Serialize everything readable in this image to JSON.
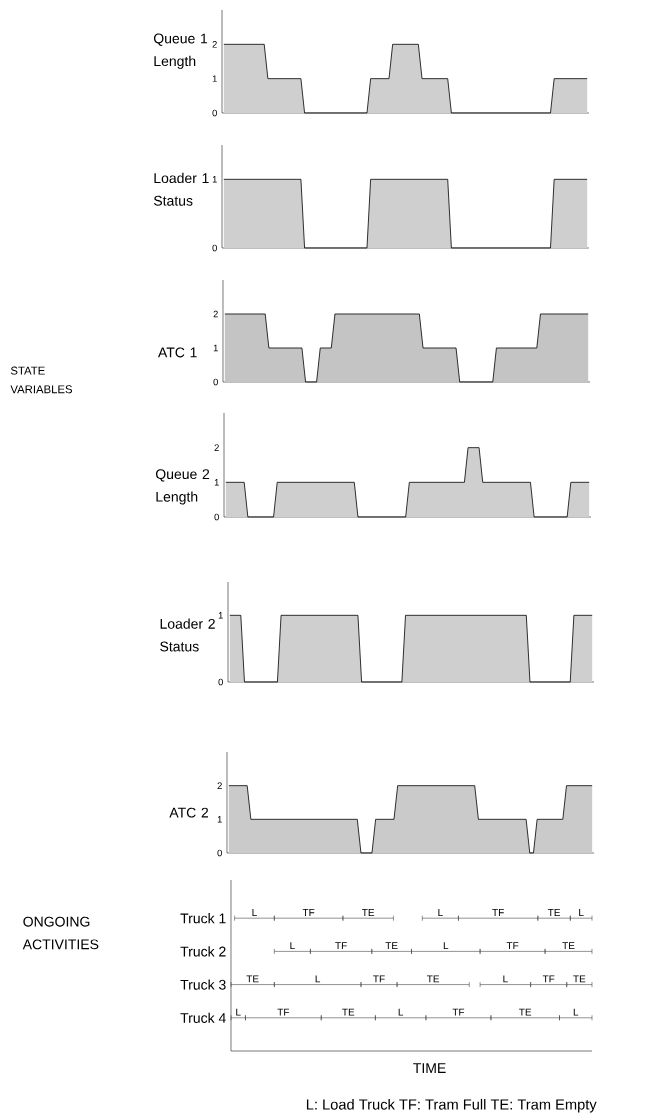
{
  "chart_data": [
    {
      "type": "area",
      "ylabel": "Queue 1 Length",
      "color": "#cfcfcf",
      "ylim": [
        0,
        3
      ],
      "yticks": [
        0,
        1,
        2
      ],
      "tick_labels": "y",
      "marker": "none",
      "categories": [
        null,
        null,
        null,
        null,
        null,
        null,
        null,
        null,
        null,
        null,
        null,
        null,
        null,
        null,
        null,
        null,
        null,
        null,
        null,
        null,
        null,
        null,
        null,
        null,
        null,
        null,
        null,
        null,
        null,
        null,
        null,
        null,
        null,
        null,
        null,
        null,
        null,
        null,
        null,
        null,
        null,
        null,
        null,
        null,
        null,
        null,
        null,
        null,
        null,
        null,
        null,
        null,
        null,
        null,
        null,
        null,
        null,
        null,
        null,
        null,
        null,
        null,
        null,
        null,
        null,
        null,
        null,
        null,
        null,
        null,
        null,
        null,
        null,
        null,
        null,
        null,
        null,
        null,
        null,
        null,
        null,
        null,
        null,
        null,
        null,
        null,
        null,
        null,
        null,
        null,
        null,
        null,
        null,
        null,
        null,
        null,
        null,
        null,
        null,
        null
      ],
      "values": [
        2,
        2,
        2,
        2,
        2,
        2,
        2,
        2,
        2,
        2,
        2,
        2,
        1,
        1,
        1,
        1,
        1,
        1,
        1,
        1,
        1,
        1,
        0,
        0,
        0,
        0,
        0,
        0,
        0,
        0,
        0,
        0,
        0,
        0,
        0,
        0,
        0,
        0,
        0,
        0,
        1,
        1,
        1,
        1,
        1,
        1,
        2,
        2,
        2,
        2,
        2,
        2,
        2,
        2,
        1,
        1,
        1,
        1,
        1,
        1,
        1,
        1,
        0,
        0,
        0,
        0,
        0,
        0,
        0,
        0,
        0,
        0,
        0,
        0,
        0,
        0,
        0,
        0,
        0,
        0,
        0,
        0,
        0,
        0,
        0,
        0,
        0,
        0,
        0,
        0,
        1,
        1,
        1,
        1,
        1,
        1,
        1,
        1,
        1,
        1
      ]
    },
    {
      "type": "area",
      "ylabel": "Loader 1 Status",
      "color": "#cfcfcf",
      "ylim": [
        0,
        1.5
      ],
      "yticks": [
        0,
        1
      ],
      "tick_labels": "y",
      "marker": "none",
      "categories": [
        null,
        null,
        null,
        null,
        null,
        null,
        null,
        null,
        null,
        null,
        null,
        null,
        null,
        null,
        null,
        null,
        null,
        null,
        null,
        null,
        null,
        null,
        null,
        null,
        null,
        null,
        null,
        null,
        null,
        null,
        null,
        null,
        null,
        null,
        null,
        null,
        null,
        null,
        null,
        null,
        null,
        null,
        null,
        null,
        null,
        null,
        null,
        null,
        null,
        null,
        null,
        null,
        null,
        null,
        null,
        null,
        null,
        null,
        null,
        null,
        null,
        null,
        null,
        null,
        null,
        null,
        null,
        null,
        null,
        null,
        null,
        null,
        null,
        null,
        null,
        null,
        null,
        null,
        null,
        null,
        null,
        null,
        null,
        null,
        null,
        null,
        null,
        null,
        null,
        null,
        null,
        null,
        null,
        null,
        null,
        null,
        null,
        null,
        null,
        null
      ],
      "values": [
        1,
        1,
        1,
        1,
        1,
        1,
        1,
        1,
        1,
        1,
        1,
        1,
        1,
        1,
        1,
        1,
        1,
        1,
        1,
        1,
        1,
        1,
        0,
        0,
        0,
        0,
        0,
        0,
        0,
        0,
        0,
        0,
        0,
        0,
        0,
        0,
        0,
        0,
        0,
        0,
        1,
        1,
        1,
        1,
        1,
        1,
        1,
        1,
        1,
        1,
        1,
        1,
        1,
        1,
        1,
        1,
        1,
        1,
        1,
        1,
        1,
        1,
        0,
        0,
        0,
        0,
        0,
        0,
        0,
        0,
        0,
        0,
        0,
        0,
        0,
        0,
        0,
        0,
        0,
        0,
        0,
        0,
        0,
        0,
        0,
        0,
        0,
        0,
        0,
        0,
        1,
        1,
        1,
        1,
        1,
        1,
        1,
        1,
        1,
        1
      ]
    },
    {
      "type": "area",
      "ylabel": "ATC 1",
      "color": "#c4c4c4",
      "ylim": [
        0,
        3
      ],
      "yticks": [
        0,
        1,
        2
      ],
      "tick_labels": "y",
      "marker": "none",
      "annotations": [
        "STATE VARIABLES"
      ],
      "categories": [
        null,
        null,
        null,
        null,
        null,
        null,
        null,
        null,
        null,
        null,
        null,
        null,
        null,
        null,
        null,
        null,
        null,
        null,
        null,
        null,
        null,
        null,
        null,
        null,
        null,
        null,
        null,
        null,
        null,
        null,
        null,
        null,
        null,
        null,
        null,
        null,
        null,
        null,
        null,
        null,
        null,
        null,
        null,
        null,
        null,
        null,
        null,
        null,
        null,
        null,
        null,
        null,
        null,
        null,
        null,
        null,
        null,
        null,
        null,
        null,
        null,
        null,
        null,
        null,
        null,
        null,
        null,
        null,
        null,
        null,
        null,
        null,
        null,
        null,
        null,
        null,
        null,
        null,
        null,
        null,
        null,
        null,
        null,
        null,
        null,
        null,
        null,
        null,
        null,
        null,
        null,
        null,
        null,
        null,
        null,
        null,
        null,
        null,
        null,
        null
      ],
      "values": [
        2,
        2,
        2,
        2,
        2,
        2,
        2,
        2,
        2,
        2,
        2,
        2,
        1,
        1,
        1,
        1,
        1,
        1,
        1,
        1,
        1,
        1,
        0,
        0,
        0,
        0,
        1,
        1,
        1,
        1,
        2,
        2,
        2,
        2,
        2,
        2,
        2,
        2,
        2,
        2,
        2,
        2,
        2,
        2,
        2,
        2,
        2,
        2,
        2,
        2,
        2,
        2,
        2,
        2,
        1,
        1,
        1,
        1,
        1,
        1,
        1,
        1,
        1,
        1,
        0,
        0,
        0,
        0,
        0,
        0,
        0,
        0,
        0,
        0,
        1,
        1,
        1,
        1,
        1,
        1,
        1,
        1,
        1,
        1,
        1,
        1,
        2,
        2,
        2,
        2,
        2,
        2,
        2,
        2,
        2,
        2,
        2,
        2,
        2,
        2
      ]
    },
    {
      "type": "area",
      "ylabel": "Queue 2 Length",
      "color": "#cfcfcf",
      "ylim": [
        0,
        3
      ],
      "yticks": [
        0,
        1,
        2
      ],
      "tick_labels": "y",
      "marker": "none",
      "categories": [
        null,
        null,
        null,
        null,
        null,
        null,
        null,
        null,
        null,
        null,
        null,
        null,
        null,
        null,
        null,
        null,
        null,
        null,
        null,
        null,
        null,
        null,
        null,
        null,
        null,
        null,
        null,
        null,
        null,
        null,
        null,
        null,
        null,
        null,
        null,
        null,
        null,
        null,
        null,
        null,
        null,
        null,
        null,
        null,
        null,
        null,
        null,
        null,
        null,
        null,
        null,
        null,
        null,
        null,
        null,
        null,
        null,
        null,
        null,
        null,
        null,
        null,
        null,
        null,
        null,
        null,
        null,
        null,
        null,
        null,
        null,
        null,
        null,
        null,
        null,
        null,
        null,
        null,
        null,
        null,
        null,
        null,
        null,
        null,
        null,
        null,
        null,
        null,
        null,
        null,
        null,
        null,
        null,
        null,
        null,
        null,
        null,
        null,
        null,
        null
      ],
      "values": [
        1,
        1,
        1,
        1,
        1,
        1,
        0,
        0,
        0,
        0,
        0,
        0,
        0,
        0,
        1,
        1,
        1,
        1,
        1,
        1,
        1,
        1,
        1,
        1,
        1,
        1,
        1,
        1,
        1,
        1,
        1,
        1,
        1,
        1,
        1,
        1,
        0,
        0,
        0,
        0,
        0,
        0,
        0,
        0,
        0,
        0,
        0,
        0,
        0,
        0,
        1,
        1,
        1,
        1,
        1,
        1,
        1,
        1,
        1,
        1,
        1,
        1,
        1,
        1,
        1,
        1,
        2,
        2,
        2,
        2,
        1,
        1,
        1,
        1,
        1,
        1,
        1,
        1,
        1,
        1,
        1,
        1,
        1,
        1,
        0,
        0,
        0,
        0,
        0,
        0,
        0,
        0,
        0,
        0,
        1,
        1,
        1,
        1,
        1,
        1
      ]
    },
    {
      "type": "area",
      "ylabel": "Loader 2 Status",
      "color": "#cfcfcf",
      "ylim": [
        0,
        1.5
      ],
      "yticks": [
        0,
        1
      ],
      "tick_labels": "y",
      "marker": "none",
      "categories": [
        null,
        null,
        null,
        null,
        null,
        null,
        null,
        null,
        null,
        null,
        null,
        null,
        null,
        null,
        null,
        null,
        null,
        null,
        null,
        null,
        null,
        null,
        null,
        null,
        null,
        null,
        null,
        null,
        null,
        null,
        null,
        null,
        null,
        null,
        null,
        null,
        null,
        null,
        null,
        null,
        null,
        null,
        null,
        null,
        null,
        null,
        null,
        null,
        null,
        null,
        null,
        null,
        null,
        null,
        null,
        null,
        null,
        null,
        null,
        null,
        null,
        null,
        null,
        null,
        null,
        null,
        null,
        null,
        null,
        null,
        null,
        null,
        null,
        null,
        null,
        null,
        null,
        null,
        null,
        null,
        null,
        null,
        null,
        null,
        null,
        null,
        null,
        null,
        null,
        null,
        null,
        null,
        null,
        null,
        null,
        null,
        null,
        null,
        null,
        null
      ],
      "values": [
        1,
        1,
        1,
        1,
        0,
        0,
        0,
        0,
        0,
        0,
        0,
        0,
        0,
        0,
        1,
        1,
        1,
        1,
        1,
        1,
        1,
        1,
        1,
        1,
        1,
        1,
        1,
        1,
        1,
        1,
        1,
        1,
        1,
        1,
        1,
        1,
        0,
        0,
        0,
        0,
        0,
        0,
        0,
        0,
        0,
        0,
        0,
        0,
        1,
        1,
        1,
        1,
        1,
        1,
        1,
        1,
        1,
        1,
        1,
        1,
        1,
        1,
        1,
        1,
        1,
        1,
        1,
        1,
        1,
        1,
        1,
        1,
        1,
        1,
        1,
        1,
        1,
        1,
        1,
        1,
        1,
        1,
        0,
        0,
        0,
        0,
        0,
        0,
        0,
        0,
        0,
        0,
        0,
        0,
        1,
        1,
        1,
        1,
        1,
        1
      ]
    },
    {
      "type": "area",
      "ylabel": "ATC 2",
      "color": "#cacaca",
      "ylim": [
        0,
        3
      ],
      "yticks": [
        0,
        1,
        2
      ],
      "tick_labels": "y",
      "marker": "none",
      "categories": [
        null,
        null,
        null,
        null,
        null,
        null,
        null,
        null,
        null,
        null,
        null,
        null,
        null,
        null,
        null,
        null,
        null,
        null,
        null,
        null,
        null,
        null,
        null,
        null,
        null,
        null,
        null,
        null,
        null,
        null,
        null,
        null,
        null,
        null,
        null,
        null,
        null,
        null,
        null,
        null,
        null,
        null,
        null,
        null,
        null,
        null,
        null,
        null,
        null,
        null,
        null,
        null,
        null,
        null,
        null,
        null,
        null,
        null,
        null,
        null,
        null,
        null,
        null,
        null,
        null,
        null,
        null,
        null,
        null,
        null,
        null,
        null,
        null,
        null,
        null,
        null,
        null,
        null,
        null,
        null,
        null,
        null,
        null,
        null,
        null,
        null,
        null,
        null,
        null,
        null,
        null,
        null,
        null,
        null,
        null,
        null,
        null,
        null,
        null,
        null
      ],
      "values": [
        2,
        2,
        2,
        2,
        2,
        2,
        1,
        1,
        1,
        1,
        1,
        1,
        1,
        1,
        1,
        1,
        1,
        1,
        1,
        1,
        1,
        1,
        1,
        1,
        1,
        1,
        1,
        1,
        1,
        1,
        1,
        1,
        1,
        1,
        1,
        1,
        0,
        0,
        0,
        0,
        1,
        1,
        1,
        1,
        1,
        1,
        2,
        2,
        2,
        2,
        2,
        2,
        2,
        2,
        2,
        2,
        2,
        2,
        2,
        2,
        2,
        2,
        2,
        2,
        2,
        2,
        2,
        2,
        1,
        1,
        1,
        1,
        1,
        1,
        1,
        1,
        1,
        1,
        1,
        1,
        1,
        1,
        0,
        0,
        1,
        1,
        1,
        1,
        1,
        1,
        1,
        1,
        2,
        2,
        2,
        2,
        2,
        2,
        2,
        2
      ]
    },
    {
      "type": "other",
      "ylabel": "ONGOING ACTIVITIES",
      "xlabel": "TIME",
      "categories": [
        "Truck 1",
        "Truck 2",
        "Truck 3",
        "Truck 4"
      ],
      "annotations": [
        "L",
        "TF",
        "TE",
        "L",
        "TF",
        "TE",
        "L",
        "L",
        "TF",
        "TE",
        "L",
        "TF",
        "TE",
        "TE",
        "L",
        "TF",
        "TE",
        "L",
        "TF",
        "TE",
        "L",
        "TF",
        "TE",
        "L",
        "TF",
        "TE",
        "L",
        "L: Load Truck   TF: Tram Full   TE: Tram Empty"
      ]
    }
  ]
}
